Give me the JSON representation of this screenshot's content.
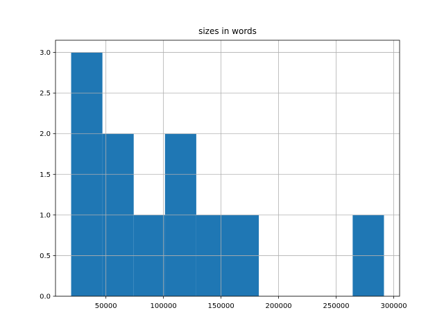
{
  "chart_data": {
    "type": "histogram",
    "title": "sizes in words",
    "bins": [
      19800,
      46970,
      74140,
      101310,
      128480,
      155650,
      182820,
      209990,
      237160,
      264330,
      291500
    ],
    "values": [
      3,
      2,
      1,
      2,
      1,
      1,
      0,
      0,
      0,
      1
    ],
    "color": "#1f77b4",
    "xlim": [
      6215,
      305085
    ],
    "xticks": [
      50000,
      100000,
      150000,
      200000,
      250000,
      300000
    ],
    "ylim": [
      0,
      3.15
    ],
    "yticks": [
      {
        "value": 0,
        "label": "0.0"
      },
      {
        "value": 0.5,
        "label": "0.5"
      },
      {
        "value": 1,
        "label": "1.0"
      },
      {
        "value": 1.5,
        "label": "1.5"
      },
      {
        "value": 2,
        "label": "2.0"
      },
      {
        "value": 2.5,
        "label": "2.5"
      },
      {
        "value": 3,
        "label": "3.0"
      }
    ],
    "grid": true
  }
}
